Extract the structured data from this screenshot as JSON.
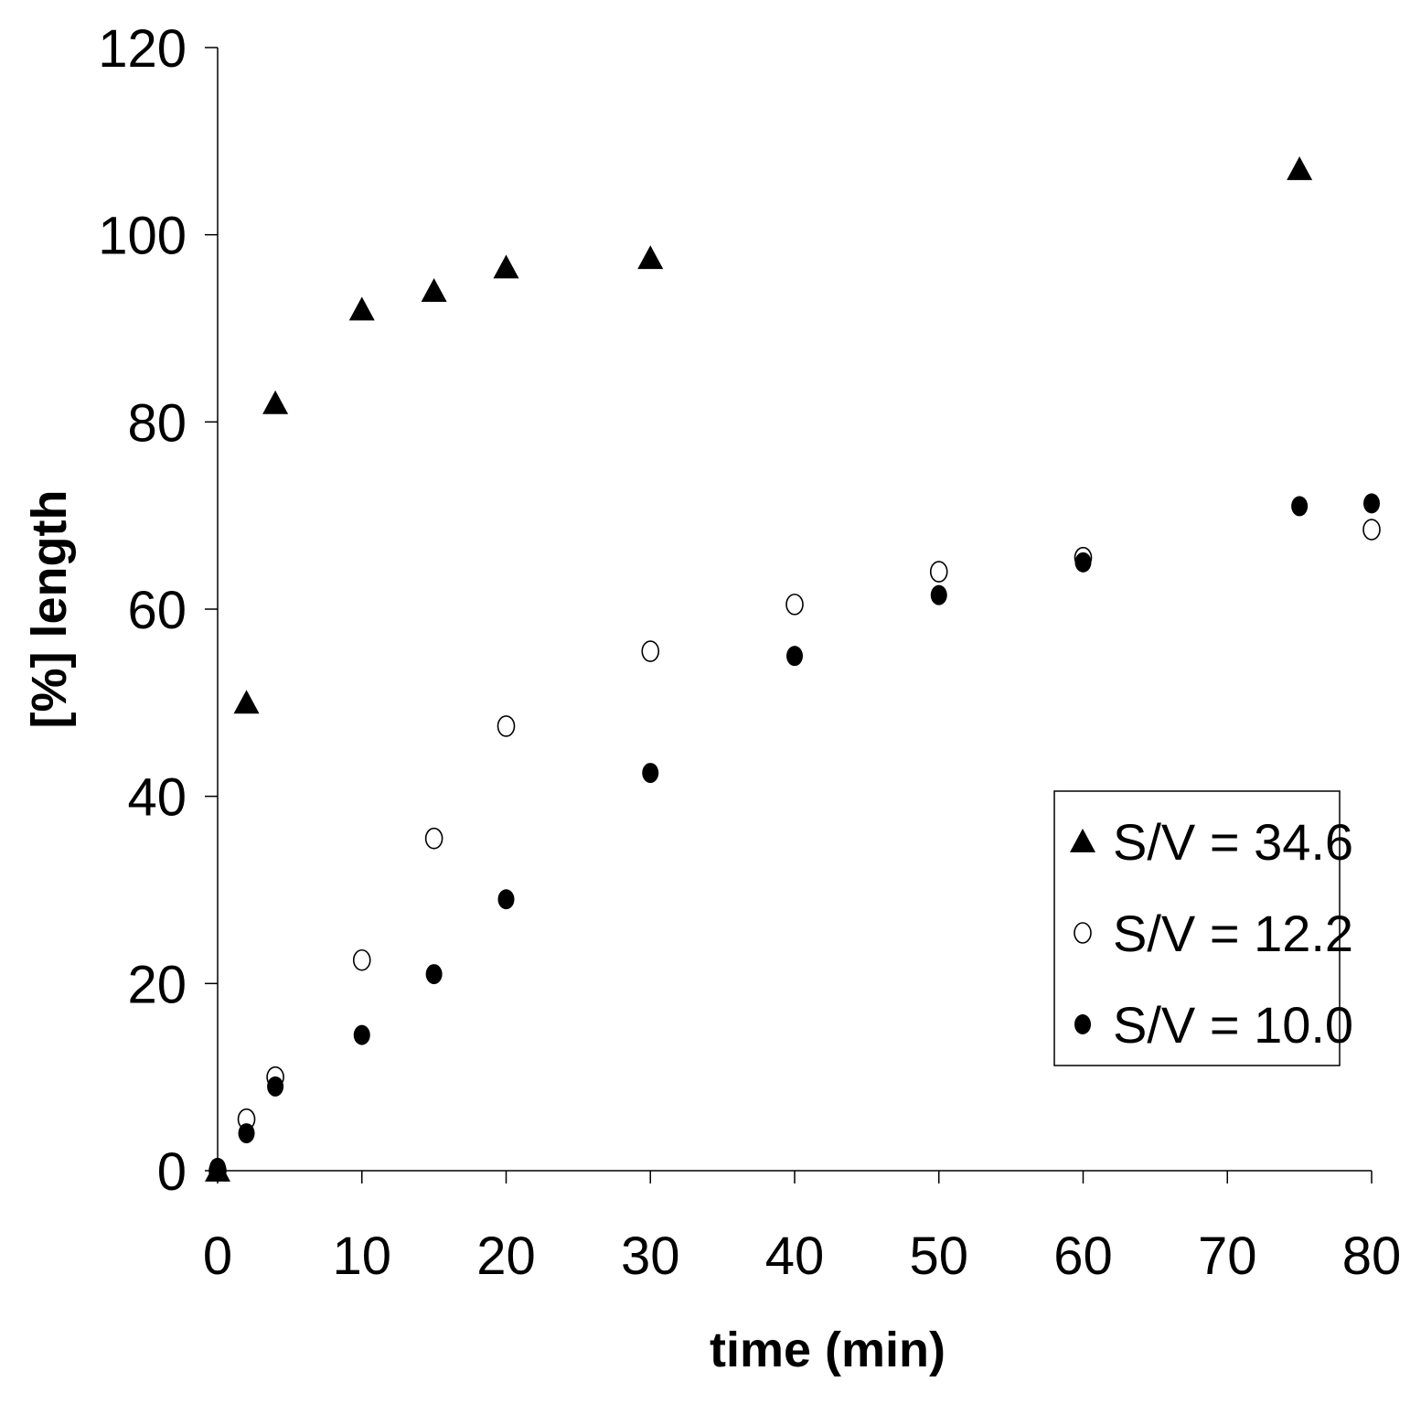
{
  "chart_data": {
    "type": "scatter",
    "title": "",
    "xlabel": "time (min)",
    "ylabel": "[%] length",
    "xlim": [
      0,
      80
    ],
    "ylim": [
      0,
      120
    ],
    "xticks": [
      0,
      10,
      20,
      30,
      40,
      50,
      60,
      70,
      80
    ],
    "yticks": [
      0,
      20,
      40,
      60,
      80,
      100,
      120
    ],
    "grid": false,
    "legend_position": "bottom-right",
    "series": [
      {
        "name": "S/V = 34.6",
        "marker": "triangle-filled",
        "color": "#000000",
        "x": [
          0,
          2,
          4,
          10,
          15,
          20,
          30,
          75
        ],
        "y": [
          0,
          50,
          82,
          92,
          94,
          96.5,
          97.5,
          107
        ]
      },
      {
        "name": "S/V = 12.2",
        "marker": "circle-open",
        "color": "#000000",
        "x": [
          0,
          2,
          4,
          10,
          15,
          20,
          30,
          40,
          50,
          60,
          80
        ],
        "y": [
          0,
          5.5,
          10,
          22.5,
          35.5,
          47.5,
          55.5,
          60.5,
          64,
          65.5,
          68.5
        ]
      },
      {
        "name": "S/V = 10.0",
        "marker": "circle-filled",
        "color": "#000000",
        "x": [
          0,
          2,
          4,
          10,
          15,
          20,
          30,
          40,
          50,
          60,
          75,
          80
        ],
        "y": [
          0.3,
          4,
          9,
          14.5,
          21,
          29,
          42.5,
          55,
          61.5,
          65,
          71,
          71.3
        ]
      }
    ]
  }
}
